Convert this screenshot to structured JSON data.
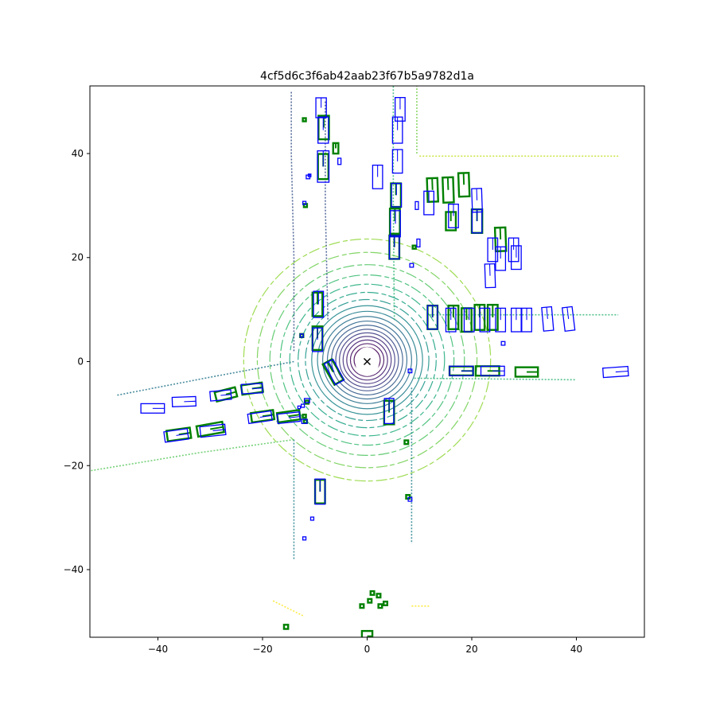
{
  "chart_data": {
    "type": "scatter",
    "title": "4cf5d6c3f6ab42aab23f67b5a9782d1a",
    "xlabel": "",
    "ylabel": "",
    "xlim": [
      -53,
      53
    ],
    "ylim": [
      -53,
      53
    ],
    "x_ticks": [
      -40,
      -20,
      0,
      20,
      40
    ],
    "y_ticks": [
      -40,
      -20,
      0,
      20,
      40
    ],
    "x_tick_labels": [
      "−40",
      "−20",
      "0",
      "20",
      "40"
    ],
    "y_tick_labels": [
      "−40",
      "−20",
      "0",
      "20",
      "40"
    ],
    "grid": false,
    "colors": {
      "ground_truth": "#008000",
      "prediction": "#0000ff",
      "ego_marker": "#000000",
      "ring_inner": "#440154",
      "ring_mid": "#31688e",
      "ring_outer": "#35b779",
      "far_points": "#fde725"
    },
    "ego": {
      "x": 0,
      "y": 0,
      "marker": "x"
    },
    "lidar_rings_radii": [
      2.5,
      3.2,
      3.9,
      4.6,
      5.3,
      6.0,
      6.8,
      7.6,
      8.5,
      9.5,
      10.6,
      11.8,
      13.2,
      14.8,
      16.6,
      18.6,
      21.0,
      23.6
    ],
    "lidar_lines": [
      {
        "name": "street-left-edge-north",
        "color": "#3a538b",
        "points": [
          [
            -14,
            2
          ],
          [
            -14,
            20
          ],
          [
            -14.5,
            40
          ],
          [
            -14.5,
            52
          ]
        ]
      },
      {
        "name": "street-right-edge-north",
        "color": "#3a538b",
        "points": [
          [
            -8,
            50
          ],
          [
            -8,
            30
          ],
          [
            -7.5,
            8
          ]
        ]
      },
      {
        "name": "street-center-north",
        "color": "#35b779",
        "points": [
          [
            5.2,
            8
          ],
          [
            5,
            30
          ],
          [
            5,
            53
          ]
        ]
      },
      {
        "name": "road-north-east",
        "color": "#7ad151",
        "points": [
          [
            9.5,
            40
          ],
          [
            9.5,
            53
          ]
        ]
      },
      {
        "name": "road-north-east-top",
        "color": "#c2df23",
        "points": [
          [
            10,
            39.5
          ],
          [
            48,
            39.5
          ]
        ]
      },
      {
        "name": "street-east-top",
        "color": "#35b779",
        "points": [
          [
            12,
            9
          ],
          [
            48,
            9
          ]
        ]
      },
      {
        "name": "street-east-bottom",
        "color": "#35b779",
        "points": [
          [
            9,
            -3.2
          ],
          [
            40,
            -3.5
          ]
        ]
      },
      {
        "name": "street-south-left",
        "color": "#26828e",
        "points": [
          [
            -14,
            -15
          ],
          [
            -14,
            -25
          ],
          [
            -14,
            -38
          ]
        ]
      },
      {
        "name": "street-south-right",
        "color": "#26828e",
        "points": [
          [
            8.5,
            -5
          ],
          [
            8.5,
            -20
          ],
          [
            8.5,
            -35
          ]
        ]
      },
      {
        "name": "street-west-top",
        "color": "#2a788e",
        "points": [
          [
            -14,
            0
          ],
          [
            -30,
            -3
          ],
          [
            -48,
            -6.5
          ]
        ]
      },
      {
        "name": "street-west-bottom",
        "color": "#5ec962",
        "points": [
          [
            -14,
            -15
          ],
          [
            -32,
            -17.5
          ],
          [
            -53,
            -21
          ]
        ]
      },
      {
        "name": "far-south",
        "color": "#fde725",
        "points": [
          [
            -18,
            -46
          ],
          [
            -12,
            -49
          ]
        ]
      },
      {
        "name": "far-south-right",
        "color": "#fde725",
        "points": [
          [
            8.5,
            -47
          ],
          [
            12,
            -47
          ]
        ]
      }
    ],
    "ground_truth_boxes": [
      {
        "x": -8.3,
        "y": 45,
        "w": 2.0,
        "l": 4.5,
        "yaw": 90
      },
      {
        "x": -8.4,
        "y": 37.5,
        "w": 2.0,
        "l": 4.8,
        "yaw": 90
      },
      {
        "x": -6.0,
        "y": 41,
        "w": 1.0,
        "l": 2.0,
        "yaw": 90
      },
      {
        "x": 5.5,
        "y": 32,
        "w": 1.9,
        "l": 4.5,
        "yaw": 90
      },
      {
        "x": 5.3,
        "y": 27,
        "w": 1.9,
        "l": 4.8,
        "yaw": 90
      },
      {
        "x": 5.2,
        "y": 22,
        "w": 1.9,
        "l": 4.5,
        "yaw": 90
      },
      {
        "x": 12.5,
        "y": 33,
        "w": 2.0,
        "l": 4.5,
        "yaw": 92
      },
      {
        "x": 15.5,
        "y": 33,
        "w": 2.0,
        "l": 4.8,
        "yaw": 92
      },
      {
        "x": 18.5,
        "y": 34,
        "w": 2.0,
        "l": 4.5,
        "yaw": 92
      },
      {
        "x": 16,
        "y": 27,
        "w": 1.9,
        "l": 3.5,
        "yaw": 90
      },
      {
        "x": 21,
        "y": 27,
        "w": 2.0,
        "l": 4.5,
        "yaw": 90
      },
      {
        "x": 25.5,
        "y": 23.5,
        "w": 2.0,
        "l": 4.5,
        "yaw": 92
      },
      {
        "x": 12.5,
        "y": 8.5,
        "w": 1.9,
        "l": 4.5,
        "yaw": 90
      },
      {
        "x": 16.5,
        "y": 8.5,
        "w": 1.9,
        "l": 4.5,
        "yaw": 90
      },
      {
        "x": 19,
        "y": 8,
        "w": 1.9,
        "l": 4.5,
        "yaw": 90
      },
      {
        "x": 21.5,
        "y": 8.5,
        "w": 1.9,
        "l": 4.8,
        "yaw": 90
      },
      {
        "x": 24,
        "y": 8.5,
        "w": 1.9,
        "l": 4.8,
        "yaw": 90
      },
      {
        "x": -9.5,
        "y": 11,
        "w": 1.9,
        "l": 4.5,
        "yaw": 90
      },
      {
        "x": -9.5,
        "y": 4.5,
        "w": 1.9,
        "l": 4.5,
        "yaw": 90
      },
      {
        "x": -6.5,
        "y": -2,
        "w": 2.0,
        "l": 4.5,
        "yaw": 120
      },
      {
        "x": 4.2,
        "y": -9.8,
        "w": 1.9,
        "l": 4.5,
        "yaw": 90
      },
      {
        "x": -27,
        "y": -6.3,
        "w": 1.8,
        "l": 4.0,
        "yaw": 14
      },
      {
        "x": -22,
        "y": -5.2,
        "w": 1.8,
        "l": 4.0,
        "yaw": 8
      },
      {
        "x": -30,
        "y": -13,
        "w": 2.0,
        "l": 5.0,
        "yaw": 10
      },
      {
        "x": -36,
        "y": -14,
        "w": 2.0,
        "l": 4.5,
        "yaw": 8
      },
      {
        "x": -20,
        "y": -10.5,
        "w": 1.8,
        "l": 4.3,
        "yaw": 8
      },
      {
        "x": -15,
        "y": -10.5,
        "w": 1.8,
        "l": 4.3,
        "yaw": 8
      },
      {
        "x": 23,
        "y": -1.8,
        "w": 1.8,
        "l": 4.5,
        "yaw": 0
      },
      {
        "x": 30.5,
        "y": -2,
        "w": 1.8,
        "l": 4.3,
        "yaw": 0
      },
      {
        "x": 18,
        "y": -1.8,
        "w": 1.7,
        "l": 4.5,
        "yaw": 0
      },
      {
        "x": -9,
        "y": -25,
        "w": 1.9,
        "l": 4.5,
        "yaw": 90
      },
      {
        "x": 0,
        "y": -52.8,
        "w": 2.0,
        "l": 2.0,
        "yaw": 0
      },
      {
        "x": -12,
        "y": 46.5,
        "w": 0.6,
        "l": 0.6,
        "yaw": 0
      },
      {
        "x": -11.8,
        "y": 30,
        "w": 0.6,
        "l": 0.6,
        "yaw": 0
      },
      {
        "x": -11.5,
        "y": -7.8,
        "w": 0.6,
        "l": 0.6,
        "yaw": 0
      },
      {
        "x": -12,
        "y": -10.5,
        "w": 0.6,
        "l": 0.6,
        "yaw": 0
      },
      {
        "x": -11.8,
        "y": -11.5,
        "w": 0.6,
        "l": 0.6,
        "yaw": 0
      },
      {
        "x": -12.5,
        "y": 5,
        "w": 0.6,
        "l": 0.6,
        "yaw": 0
      },
      {
        "x": 7.5,
        "y": -15.5,
        "w": 0.7,
        "l": 0.7,
        "yaw": 0
      },
      {
        "x": 7.8,
        "y": -26,
        "w": 0.7,
        "l": 0.7,
        "yaw": 0
      },
      {
        "x": 9,
        "y": 22,
        "w": 0.6,
        "l": 0.6,
        "yaw": 0
      },
      {
        "x": -1,
        "y": -47,
        "w": 0.7,
        "l": 0.7,
        "yaw": 0
      },
      {
        "x": 0.5,
        "y": -46,
        "w": 0.7,
        "l": 0.7,
        "yaw": 0
      },
      {
        "x": 1,
        "y": -44.5,
        "w": 0.7,
        "l": 0.7,
        "yaw": 0
      },
      {
        "x": 2.2,
        "y": -45,
        "w": 0.7,
        "l": 0.7,
        "yaw": 0
      },
      {
        "x": 2.5,
        "y": -47,
        "w": 0.7,
        "l": 0.7,
        "yaw": 0
      },
      {
        "x": 3.5,
        "y": -46.5,
        "w": 0.7,
        "l": 0.7,
        "yaw": 0
      },
      {
        "x": -15.5,
        "y": -51,
        "w": 0.8,
        "l": 0.8,
        "yaw": 0
      }
    ],
    "prediction_boxes": [
      {
        "x": -8.8,
        "y": 48.8,
        "w": 2.0,
        "l": 3.8,
        "yaw": 90
      },
      {
        "x": -8.4,
        "y": 44.5,
        "w": 2.0,
        "l": 5.0,
        "yaw": 90
      },
      {
        "x": -8.4,
        "y": 37.5,
        "w": 2.2,
        "l": 6.0,
        "yaw": 90
      },
      {
        "x": 6.3,
        "y": 48.5,
        "w": 1.9,
        "l": 4.5,
        "yaw": 90
      },
      {
        "x": 5.8,
        "y": 44.5,
        "w": 1.9,
        "l": 5.0,
        "yaw": 90
      },
      {
        "x": 5.8,
        "y": 38.5,
        "w": 1.9,
        "l": 4.5,
        "yaw": 90
      },
      {
        "x": 2,
        "y": 35.5,
        "w": 1.9,
        "l": 4.5,
        "yaw": 90
      },
      {
        "x": 5.6,
        "y": 32,
        "w": 1.9,
        "l": 4.5,
        "yaw": 90
      },
      {
        "x": 5.4,
        "y": 26.5,
        "w": 1.9,
        "l": 5.0,
        "yaw": 90
      },
      {
        "x": 5.2,
        "y": 22,
        "w": 1.9,
        "l": 4.5,
        "yaw": 90
      },
      {
        "x": 11.8,
        "y": 30.5,
        "w": 1.9,
        "l": 4.5,
        "yaw": 90
      },
      {
        "x": 16.5,
        "y": 28,
        "w": 1.9,
        "l": 4.5,
        "yaw": 90
      },
      {
        "x": 21,
        "y": 31,
        "w": 1.9,
        "l": 4.5,
        "yaw": 92
      },
      {
        "x": 21,
        "y": 27,
        "w": 1.9,
        "l": 4.5,
        "yaw": 90
      },
      {
        "x": 24,
        "y": 21.5,
        "w": 1.9,
        "l": 4.5,
        "yaw": 90
      },
      {
        "x": 25.5,
        "y": 19.8,
        "w": 1.9,
        "l": 4.5,
        "yaw": 90
      },
      {
        "x": 28.5,
        "y": 20,
        "w": 1.9,
        "l": 4.5,
        "yaw": 90
      },
      {
        "x": 28,
        "y": 21.5,
        "w": 1.9,
        "l": 4.5,
        "yaw": 90
      },
      {
        "x": 23.5,
        "y": 16.5,
        "w": 1.9,
        "l": 4.5,
        "yaw": 92
      },
      {
        "x": 12.5,
        "y": 8.5,
        "w": 1.9,
        "l": 4.5,
        "yaw": 90
      },
      {
        "x": 16,
        "y": 8,
        "w": 1.9,
        "l": 4.5,
        "yaw": 90
      },
      {
        "x": 19.5,
        "y": 8,
        "w": 1.9,
        "l": 4.5,
        "yaw": 90
      },
      {
        "x": 22.5,
        "y": 8,
        "w": 1.9,
        "l": 4.5,
        "yaw": 90
      },
      {
        "x": 25.5,
        "y": 8,
        "w": 1.9,
        "l": 4.5,
        "yaw": 90
      },
      {
        "x": 28.5,
        "y": 8,
        "w": 1.9,
        "l": 4.5,
        "yaw": 90
      },
      {
        "x": 30.5,
        "y": 8,
        "w": 1.9,
        "l": 4.5,
        "yaw": 90
      },
      {
        "x": 34.5,
        "y": 8.2,
        "w": 1.9,
        "l": 4.5,
        "yaw": 95
      },
      {
        "x": 38.5,
        "y": 8.2,
        "w": 1.9,
        "l": 4.5,
        "yaw": 97
      },
      {
        "x": -9.3,
        "y": 11,
        "w": 1.9,
        "l": 5.0,
        "yaw": 90
      },
      {
        "x": -9.5,
        "y": 4.2,
        "w": 1.9,
        "l": 4.5,
        "yaw": 90
      },
      {
        "x": -6.3,
        "y": -2,
        "w": 1.9,
        "l": 4.5,
        "yaw": 118
      },
      {
        "x": 4.2,
        "y": -9.5,
        "w": 1.8,
        "l": 4.8,
        "yaw": 90
      },
      {
        "x": -41,
        "y": -9,
        "w": 1.8,
        "l": 4.5,
        "yaw": 0
      },
      {
        "x": -35,
        "y": -7.7,
        "w": 1.8,
        "l": 4.5,
        "yaw": 2
      },
      {
        "x": -28,
        "y": -6.5,
        "w": 1.8,
        "l": 4.0,
        "yaw": 5
      },
      {
        "x": -22,
        "y": -5.2,
        "w": 1.8,
        "l": 4.0,
        "yaw": 3
      },
      {
        "x": -36.5,
        "y": -14.2,
        "w": 2.0,
        "l": 4.5,
        "yaw": 8
      },
      {
        "x": -29.5,
        "y": -13.3,
        "w": 2.0,
        "l": 4.8,
        "yaw": 6
      },
      {
        "x": -20.5,
        "y": -10.7,
        "w": 1.8,
        "l": 4.5,
        "yaw": 8
      },
      {
        "x": -15,
        "y": -10.8,
        "w": 1.8,
        "l": 4.3,
        "yaw": 6
      },
      {
        "x": 18,
        "y": -1.8,
        "w": 1.8,
        "l": 4.5,
        "yaw": 0
      },
      {
        "x": 24,
        "y": -1.8,
        "w": 1.8,
        "l": 4.5,
        "yaw": 0
      },
      {
        "x": 47.5,
        "y": -2,
        "w": 1.8,
        "l": 4.8,
        "yaw": 4
      },
      {
        "x": -9,
        "y": -25,
        "w": 1.9,
        "l": 4.8,
        "yaw": 90
      },
      {
        "x": -11.3,
        "y": 35.5,
        "w": 0.7,
        "l": 0.7,
        "yaw": 0
      },
      {
        "x": -5.3,
        "y": 38.5,
        "w": 0.6,
        "l": 1.2,
        "yaw": 90
      },
      {
        "x": -12,
        "y": 30.5,
        "w": 0.6,
        "l": 0.6,
        "yaw": 0
      },
      {
        "x": 9.5,
        "y": 30,
        "w": 0.6,
        "l": 1.5,
        "yaw": 90
      },
      {
        "x": 9.8,
        "y": 22.8,
        "w": 0.6,
        "l": 1.5,
        "yaw": 90
      },
      {
        "x": 8.5,
        "y": 18.5,
        "w": 0.7,
        "l": 0.7,
        "yaw": 0
      },
      {
        "x": 8.2,
        "y": -1.8,
        "w": 0.7,
        "l": 0.7,
        "yaw": 0
      },
      {
        "x": 26,
        "y": 3.5,
        "w": 0.7,
        "l": 0.7,
        "yaw": 0
      },
      {
        "x": -12.5,
        "y": 5,
        "w": 0.6,
        "l": 0.6,
        "yaw": 0
      },
      {
        "x": -11.5,
        "y": -7.5,
        "w": 0.8,
        "l": 1.0,
        "yaw": 0
      },
      {
        "x": -12.3,
        "y": -8.5,
        "w": 0.6,
        "l": 0.6,
        "yaw": 0
      },
      {
        "x": -12,
        "y": -11.5,
        "w": 0.8,
        "l": 1.0,
        "yaw": 0
      },
      {
        "x": -13,
        "y": -8.8,
        "w": 0.5,
        "l": 0.5,
        "yaw": 0
      },
      {
        "x": -10.5,
        "y": -30.2,
        "w": 0.6,
        "l": 0.6,
        "yaw": 0
      },
      {
        "x": -12,
        "y": -34,
        "w": 0.6,
        "l": 0.6,
        "yaw": 0
      },
      {
        "x": 8.2,
        "y": -26.5,
        "w": 0.7,
        "l": 0.7,
        "yaw": 0
      },
      {
        "x": -11,
        "y": 35.8,
        "w": 0.5,
        "l": 0.5,
        "yaw": 0
      }
    ]
  }
}
